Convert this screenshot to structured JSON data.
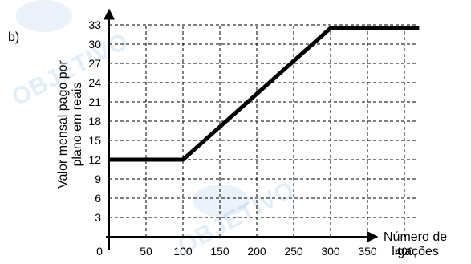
{
  "panel_label": "b)",
  "watermark": "OBJETIVO",
  "colors": {
    "line": "#000000",
    "grid": "#000000",
    "watermark": "#9dbfe0"
  },
  "chart_data": {
    "type": "line",
    "title": "",
    "ylabel": "Valor mensal pago por\nplano em reais",
    "xlabel": "Número de\nligações",
    "x_ticks": [
      0,
      50,
      100,
      150,
      200,
      250,
      300,
      350,
      400
    ],
    "y_ticks": [
      0,
      3,
      6,
      9,
      12,
      15,
      18,
      21,
      24,
      27,
      30,
      33
    ],
    "xlim": [
      0,
      440
    ],
    "ylim": [
      0,
      36
    ],
    "grid": true,
    "grid_style": "dashed",
    "series": [
      {
        "x": [
          0,
          100,
          300,
          420
        ],
        "y": [
          12,
          12,
          32.5,
          32.5
        ]
      }
    ]
  }
}
